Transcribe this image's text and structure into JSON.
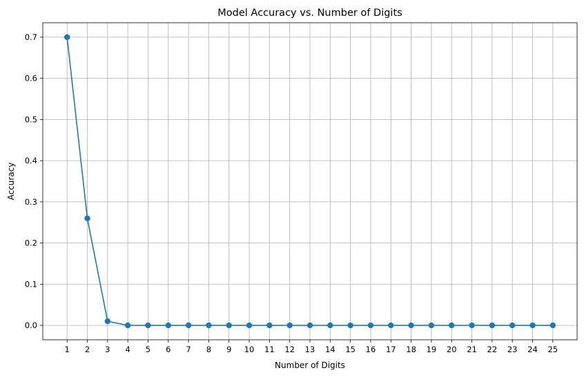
{
  "chart_data": {
    "type": "line",
    "title": "Model Accuracy vs. Number of Digits",
    "xlabel": "Number of Digits",
    "ylabel": "Accuracy",
    "x": [
      1,
      2,
      3,
      4,
      5,
      6,
      7,
      8,
      9,
      10,
      11,
      12,
      13,
      14,
      15,
      16,
      17,
      18,
      19,
      20,
      21,
      22,
      23,
      24,
      25
    ],
    "series": [
      {
        "values": [
          0.7,
          0.26,
          0.01,
          0,
          0,
          0,
          0,
          0,
          0,
          0,
          0,
          0,
          0,
          0,
          0,
          0,
          0,
          0,
          0,
          0,
          0,
          0,
          0,
          0,
          0
        ],
        "color": "#1f77b4",
        "marker": "circle"
      }
    ],
    "xticks": [
      "1",
      "2",
      "3",
      "4",
      "5",
      "6",
      "7",
      "8",
      "9",
      "10",
      "11",
      "12",
      "13",
      "14",
      "15",
      "16",
      "17",
      "18",
      "19",
      "20",
      "21",
      "22",
      "23",
      "24",
      "25"
    ],
    "yticks": [
      "0.0",
      "0.1",
      "0.2",
      "0.3",
      "0.4",
      "0.5",
      "0.6",
      "0.7"
    ],
    "xlim": [
      -0.2,
      26.2
    ],
    "ylim": [
      -0.035,
      0.735
    ],
    "grid": true
  }
}
